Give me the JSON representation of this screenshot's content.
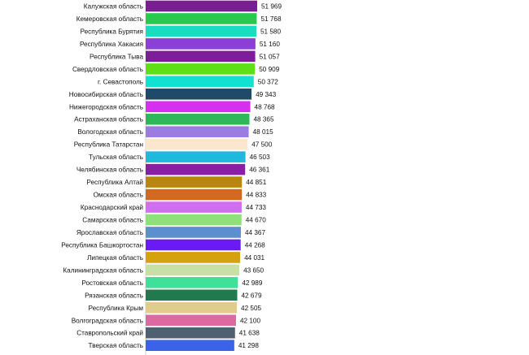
{
  "chart_data": {
    "type": "bar",
    "orientation": "horizontal",
    "title": "",
    "xlabel": "",
    "ylabel": "",
    "xlim": [
      0,
      51969
    ],
    "grid": false,
    "legend": "none",
    "categories": [
      "Калужская область",
      "Кемеровская область",
      "Республика Бурятия",
      "Республика Хакасия",
      "Республика Тыва",
      "Свердловская область",
      "г. Севастополь",
      "Новосибирская область",
      "Нижегородская область",
      "Астраханская область",
      "Вологодская область",
      "Республика Татарстан",
      "Тульская область",
      "Челябинская область",
      "Республика Алтай",
      "Омская область",
      "Краснодарский край",
      "Самарская область",
      "Ярославская область",
      "Республика Башкортостан",
      "Липецкая область",
      "Калининградская область",
      "Ростовская область",
      "Рязанская область",
      "Республика Крым",
      "Волгоградская область",
      "Ставропольский край",
      "Тверская область"
    ],
    "values": [
      51969,
      51768,
      51580,
      51160,
      51057,
      50909,
      50372,
      49343,
      48768,
      48365,
      48015,
      47500,
      46503,
      46361,
      44851,
      44833,
      44733,
      44670,
      44367,
      44268,
      44031,
      43650,
      42989,
      42679,
      42505,
      42100,
      41638,
      41298
    ],
    "value_labels": [
      "51 969",
      "51 768",
      "51 580",
      "51 160",
      "51 057",
      "50 909",
      "50 372",
      "49 343",
      "48 768",
      "48 365",
      "48 015",
      "47 500",
      "46 503",
      "46 361",
      "44 851",
      "44 833",
      "44 733",
      "44 670",
      "44 367",
      "44 268",
      "44 031",
      "43 650",
      "42 989",
      "42 679",
      "42 505",
      "42 100",
      "41 638",
      "41 298"
    ],
    "colors": [
      "#7a1f8f",
      "#28c94f",
      "#19ddc0",
      "#8a3fd6",
      "#7e1c9c",
      "#5fe016",
      "#12e1d2",
      "#1f4a68",
      "#d62ff0",
      "#2fb85a",
      "#9a7ce3",
      "#fbe7d0",
      "#21b8dd",
      "#8a1ea6",
      "#b8860b",
      "#d2691e",
      "#cf6ff0",
      "#8ee07a",
      "#5b8fd0",
      "#6a1bf5",
      "#d4a20c",
      "#c7e0a6",
      "#3ee09a",
      "#1f7a4d",
      "#e0cd8c",
      "#dc6aa0",
      "#516070",
      "#3a63e8"
    ]
  }
}
